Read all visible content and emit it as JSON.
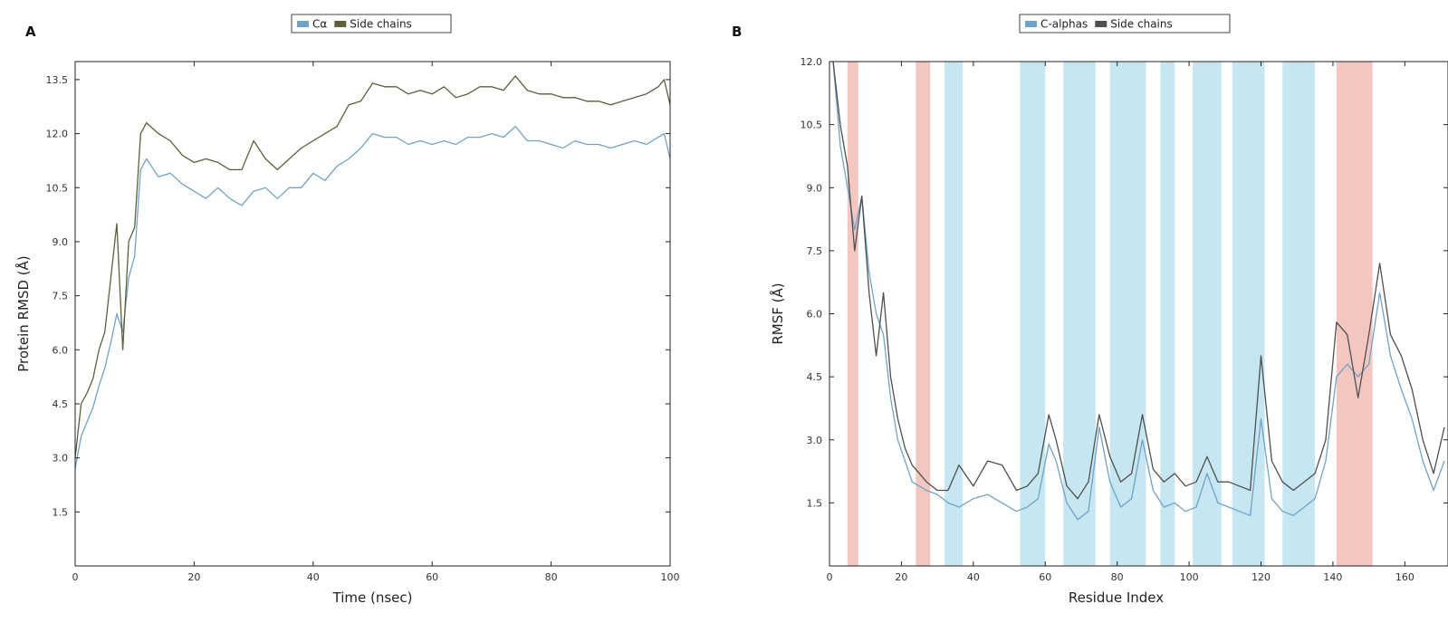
{
  "chart_data": [
    {
      "type": "line",
      "panel": "A",
      "xlabel": "Time (nsec)",
      "ylabel": "Protein RMSD (Å)",
      "xlim": [
        0,
        100
      ],
      "ylim": [
        0,
        14.0
      ],
      "xticks": [
        0,
        20,
        40,
        60,
        80,
        100
      ],
      "xtick_labels": [
        "0",
        "20",
        "40",
        "60",
        "80",
        "100"
      ],
      "yticks": [
        1.5,
        3.0,
        4.5,
        6.0,
        7.5,
        9.0,
        10.5,
        12.0,
        13.5
      ],
      "ytick_labels": [
        "1.5",
        "3.0",
        "4.5",
        "6.0",
        "7.5",
        "9.0",
        "10.5",
        "12.0",
        "13.5"
      ],
      "grid": false,
      "legend": {
        "placement": "top-center",
        "entries": [
          "Cα",
          "Side chains"
        ]
      },
      "series": [
        {
          "name": "Cα",
          "color": "#6fa3c7",
          "x": [
            0,
            1,
            2,
            3,
            4,
            5,
            6,
            7,
            8,
            9,
            10,
            11,
            12,
            14,
            16,
            18,
            20,
            22,
            24,
            26,
            28,
            30,
            32,
            34,
            36,
            38,
            40,
            42,
            44,
            46,
            48,
            50,
            52,
            54,
            56,
            58,
            60,
            62,
            64,
            66,
            68,
            70,
            72,
            74,
            76,
            78,
            80,
            82,
            84,
            86,
            88,
            90,
            92,
            94,
            96,
            98,
            99,
            100
          ],
          "y": [
            2.7,
            3.6,
            4.0,
            4.4,
            5.0,
            5.5,
            6.2,
            7.0,
            6.5,
            8.0,
            8.6,
            11.0,
            11.3,
            10.8,
            10.9,
            10.6,
            10.4,
            10.2,
            10.5,
            10.2,
            10.0,
            10.4,
            10.5,
            10.2,
            10.5,
            10.5,
            10.9,
            10.7,
            11.1,
            11.3,
            11.6,
            12.0,
            11.9,
            11.9,
            11.7,
            11.8,
            11.7,
            11.8,
            11.7,
            11.9,
            11.9,
            12.0,
            11.9,
            12.2,
            11.8,
            11.8,
            11.7,
            11.6,
            11.8,
            11.7,
            11.7,
            11.6,
            11.7,
            11.8,
            11.7,
            11.9,
            12.0,
            11.3
          ]
        },
        {
          "name": "Side chains",
          "color": "#5e5e3a",
          "x": [
            0,
            1,
            2,
            3,
            4,
            5,
            6,
            7,
            8,
            9,
            10,
            11,
            12,
            14,
            16,
            18,
            20,
            22,
            24,
            26,
            28,
            30,
            32,
            34,
            36,
            38,
            40,
            42,
            44,
            46,
            48,
            50,
            52,
            54,
            56,
            58,
            60,
            62,
            64,
            66,
            68,
            70,
            72,
            74,
            76,
            78,
            80,
            82,
            84,
            86,
            88,
            90,
            92,
            94,
            96,
            98,
            99,
            100
          ],
          "y": [
            3.0,
            4.5,
            4.8,
            5.2,
            6.0,
            6.5,
            8.0,
            9.5,
            6.0,
            9.0,
            9.4,
            12.0,
            12.3,
            12.0,
            11.8,
            11.4,
            11.2,
            11.3,
            11.2,
            11.0,
            11.0,
            11.8,
            11.3,
            11.0,
            11.3,
            11.6,
            11.8,
            12.0,
            12.2,
            12.8,
            12.9,
            13.4,
            13.3,
            13.3,
            13.1,
            13.2,
            13.1,
            13.3,
            13.0,
            13.1,
            13.3,
            13.3,
            13.2,
            13.6,
            13.2,
            13.1,
            13.1,
            13.0,
            13.0,
            12.9,
            12.9,
            12.8,
            12.9,
            13.0,
            13.1,
            13.3,
            13.5,
            12.8
          ]
        }
      ]
    },
    {
      "type": "line",
      "panel": "B",
      "xlabel": "Residue Index",
      "ylabel": "RMSF (Å)",
      "xlim": [
        0,
        172
      ],
      "ylim": [
        0,
        12.0
      ],
      "xticks": [
        0,
        20,
        40,
        60,
        80,
        100,
        120,
        140,
        160
      ],
      "xtick_labels": [
        "0",
        "20",
        "40",
        "60",
        "80",
        "100",
        "120",
        "140",
        "160"
      ],
      "yticks": [
        1.5,
        3.0,
        4.5,
        6.0,
        7.5,
        9.0,
        10.5,
        12.0
      ],
      "ytick_labels": [
        "1.5",
        "3.0",
        "4.5",
        "6.0",
        "7.5",
        "9.0",
        "10.5",
        "12.0"
      ],
      "grid": false,
      "legend": {
        "placement": "top-center",
        "entries": [
          "C-alphas",
          "Side chains"
        ]
      },
      "shaded_regions": [
        {
          "type": "helix",
          "color": "#f4c6c0",
          "x_start": 5,
          "x_end": 8
        },
        {
          "type": "helix",
          "color": "#f4c6c0",
          "x_start": 24,
          "x_end": 28
        },
        {
          "type": "strand",
          "color": "#c6e6f2",
          "x_start": 32,
          "x_end": 37
        },
        {
          "type": "strand",
          "color": "#c6e6f2",
          "x_start": 53,
          "x_end": 60
        },
        {
          "type": "strand",
          "color": "#c6e6f2",
          "x_start": 65,
          "x_end": 74
        },
        {
          "type": "strand",
          "color": "#c6e6f2",
          "x_start": 78,
          "x_end": 88
        },
        {
          "type": "strand",
          "color": "#c6e6f2",
          "x_start": 92,
          "x_end": 96
        },
        {
          "type": "strand",
          "color": "#c6e6f2",
          "x_start": 101,
          "x_end": 109
        },
        {
          "type": "strand",
          "color": "#c6e6f2",
          "x_start": 112,
          "x_end": 121
        },
        {
          "type": "strand",
          "color": "#c6e6f2",
          "x_start": 126,
          "x_end": 135
        },
        {
          "type": "helix",
          "color": "#f4c6c0",
          "x_start": 141,
          "x_end": 151
        }
      ],
      "series": [
        {
          "name": "C-alphas",
          "color": "#6fa3c7",
          "x": [
            1,
            3,
            5,
            7,
            9,
            11,
            13,
            15,
            17,
            19,
            21,
            23,
            25,
            27,
            30,
            33,
            36,
            40,
            44,
            48,
            52,
            55,
            58,
            61,
            63,
            66,
            69,
            72,
            75,
            78,
            81,
            84,
            87,
            90,
            93,
            96,
            99,
            102,
            105,
            108,
            111,
            114,
            117,
            120,
            123,
            126,
            129,
            132,
            135,
            138,
            141,
            144,
            147,
            150,
            153,
            156,
            159,
            162,
            165,
            168,
            171
          ],
          "y": [
            12.0,
            10.0,
            9.0,
            8.0,
            8.8,
            7.0,
            6.0,
            5.5,
            4.0,
            3.0,
            2.5,
            2.0,
            1.9,
            1.8,
            1.7,
            1.5,
            1.4,
            1.6,
            1.7,
            1.5,
            1.3,
            1.4,
            1.6,
            2.9,
            2.5,
            1.5,
            1.1,
            1.3,
            3.3,
            2.0,
            1.4,
            1.6,
            3.0,
            1.8,
            1.4,
            1.5,
            1.3,
            1.4,
            2.2,
            1.5,
            1.4,
            1.3,
            1.2,
            3.5,
            1.6,
            1.3,
            1.2,
            1.4,
            1.6,
            2.5,
            4.5,
            4.8,
            4.5,
            4.8,
            6.5,
            5.0,
            4.2,
            3.5,
            2.5,
            1.8,
            2.5
          ]
        },
        {
          "name": "Side chains",
          "color": "#4f4f4f",
          "x": [
            1,
            3,
            5,
            7,
            9,
            11,
            13,
            15,
            17,
            19,
            21,
            23,
            25,
            27,
            30,
            33,
            36,
            40,
            44,
            48,
            52,
            55,
            58,
            61,
            63,
            66,
            69,
            72,
            75,
            78,
            81,
            84,
            87,
            90,
            93,
            96,
            99,
            102,
            105,
            108,
            111,
            114,
            117,
            120,
            123,
            126,
            129,
            132,
            135,
            138,
            141,
            144,
            147,
            150,
            153,
            156,
            159,
            162,
            165,
            168,
            171
          ],
          "y": [
            12.0,
            10.5,
            9.5,
            7.5,
            8.8,
            6.5,
            5.0,
            6.5,
            4.5,
            3.5,
            2.8,
            2.4,
            2.2,
            2.0,
            1.8,
            1.8,
            2.4,
            1.9,
            2.5,
            2.4,
            1.8,
            1.9,
            2.2,
            3.6,
            3.0,
            1.9,
            1.6,
            2.0,
            3.6,
            2.6,
            2.0,
            2.2,
            3.6,
            2.3,
            2.0,
            2.2,
            1.9,
            2.0,
            2.6,
            2.0,
            2.0,
            1.9,
            1.8,
            5.0,
            2.5,
            2.0,
            1.8,
            2.0,
            2.2,
            3.0,
            5.8,
            5.5,
            4.0,
            5.5,
            7.2,
            5.5,
            5.0,
            4.2,
            3.0,
            2.2,
            3.3
          ]
        }
      ]
    }
  ]
}
